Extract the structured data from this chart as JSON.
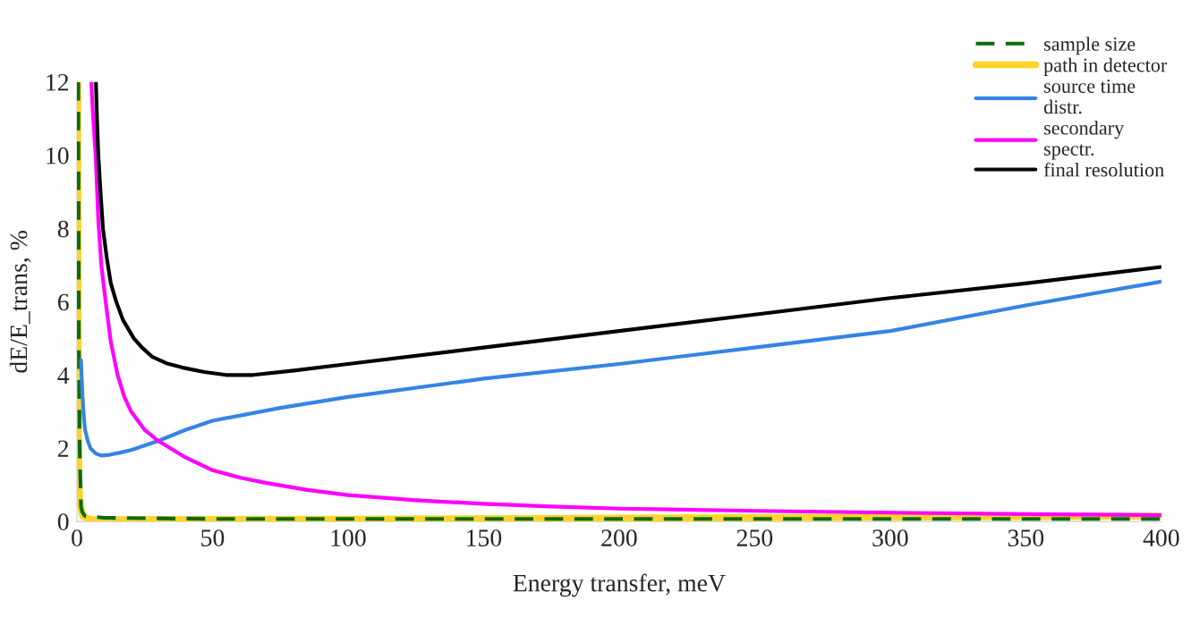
{
  "chart_data": {
    "type": "line",
    "xlabel": "Energy transfer, meV",
    "ylabel": "dE/E_trans, %",
    "xlim": [
      0,
      400
    ],
    "ylim": [
      0,
      12
    ],
    "xticks": [
      0,
      50,
      100,
      150,
      200,
      250,
      300,
      350,
      400
    ],
    "yticks": [
      0,
      2,
      4,
      6,
      8,
      10,
      12
    ],
    "grid": false,
    "legend": "top right",
    "series": [
      {
        "name": "sample size",
        "color": "#0b6b0b",
        "line_style": "dashed",
        "x": [
          0.5,
          0.7,
          1,
          1.5,
          2,
          3,
          10,
          50,
          400
        ],
        "values": [
          12,
          5,
          2,
          0.4,
          0.25,
          0.15,
          0.1,
          0.07,
          0.07
        ]
      },
      {
        "name": "path in detector",
        "color": "#ffd42a",
        "line_style": "solid",
        "x": [
          0.3,
          0.4,
          0.5,
          0.7,
          1,
          2,
          5,
          100,
          400
        ],
        "values": [
          12,
          6,
          3,
          1.2,
          0.6,
          0.15,
          0.05,
          0.06,
          0.15
        ]
      },
      {
        "name": "source time\ndistr.",
        "color": "#3584e4",
        "line_style": "solid",
        "x": [
          1.5,
          2,
          2.5,
          3,
          4,
          5,
          7,
          9,
          12,
          16,
          20,
          30,
          40,
          50,
          75,
          100,
          150,
          200,
          250,
          300,
          350,
          400
        ],
        "values": [
          4.4,
          3.5,
          2.9,
          2.5,
          2.2,
          2.0,
          1.85,
          1.8,
          1.82,
          1.88,
          1.95,
          2.2,
          2.5,
          2.75,
          3.1,
          3.4,
          3.9,
          4.3,
          4.75,
          5.2,
          5.9,
          6.55
        ]
      },
      {
        "name": "secondary\nspectr.",
        "color": "#ff00ff",
        "line_style": "solid",
        "x": [
          5.3,
          6,
          6.9,
          7.9,
          9,
          10.6,
          12.5,
          15,
          17.5,
          20,
          25,
          30,
          40,
          50,
          60,
          70,
          85,
          100,
          125,
          150,
          175,
          200,
          250,
          300,
          350,
          400
        ],
        "values": [
          12,
          11,
          10,
          8.2,
          7,
          6,
          4.9,
          4,
          3.4,
          3,
          2.5,
          2.2,
          1.75,
          1.4,
          1.2,
          1.05,
          0.86,
          0.72,
          0.58,
          0.48,
          0.41,
          0.35,
          0.29,
          0.24,
          0.2,
          0.17
        ]
      },
      {
        "name": "final resolution",
        "color": "#000000",
        "line_style": "solid",
        "x": [
          7,
          7.4,
          7.9,
          8.7,
          9.6,
          11,
          12.5,
          14.5,
          17,
          21,
          24,
          27.7,
          33,
          39,
          47,
          55,
          65,
          80,
          100,
          150,
          200,
          250,
          300,
          350,
          400
        ],
        "values": [
          12,
          11,
          10,
          9,
          8,
          7.2,
          6.5,
          6,
          5.5,
          5,
          4.75,
          4.5,
          4.32,
          4.2,
          4.08,
          4.0,
          4.0,
          4.12,
          4.3,
          4.75,
          5.2,
          5.65,
          6.1,
          6.5,
          6.95
        ]
      }
    ]
  }
}
